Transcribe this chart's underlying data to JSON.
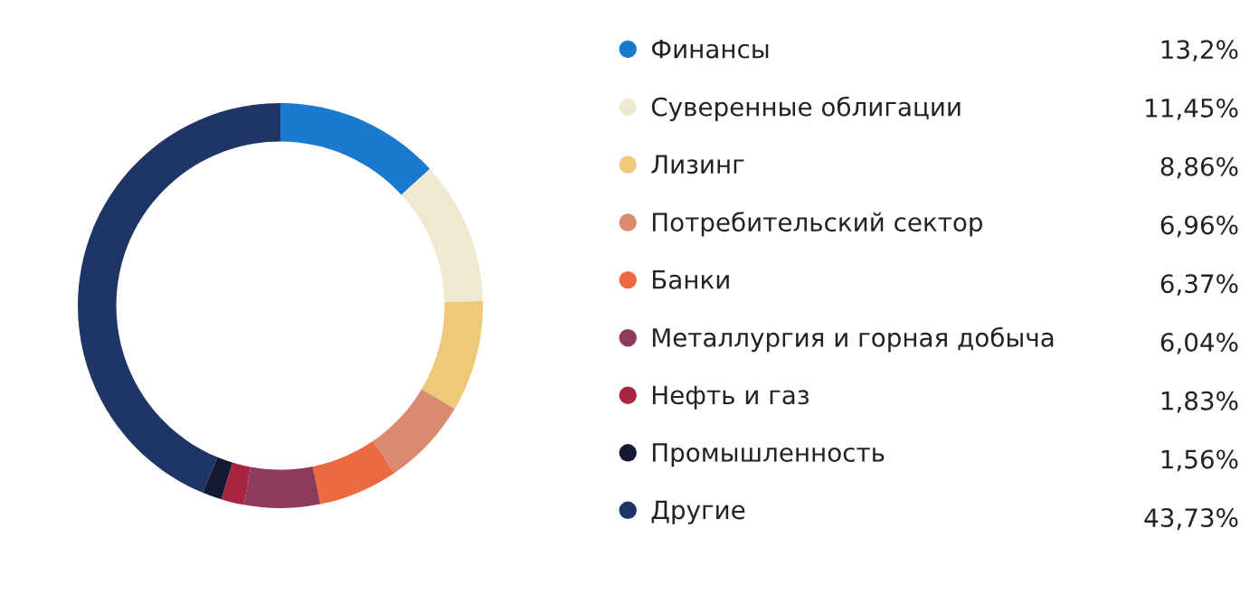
{
  "chart_data": {
    "type": "donut",
    "legend": "right",
    "categories": [
      "Финансы",
      "Суверенные облигации",
      "Лизинг",
      "Потребительский сектор",
      "Банки",
      "Металлургия и горная добыча",
      "Нефть и газ",
      "Промышленность",
      "Другие"
    ],
    "values": [
      13.2,
      11.45,
      8.86,
      6.96,
      6.37,
      6.04,
      1.83,
      1.56,
      43.73
    ],
    "value_labels": [
      "13,2%",
      "11,45%",
      "8,86%",
      "6,96%",
      "6,37%",
      "6,04%",
      "1,83%",
      "1,56%",
      "43,73%"
    ],
    "colors": [
      "#1a7ad0",
      "#f0e9d2",
      "#efc97a",
      "#d98a70",
      "#eb6a40",
      "#8d3a5c",
      "#a8253f",
      "#141a33",
      "#1f3566"
    ]
  }
}
